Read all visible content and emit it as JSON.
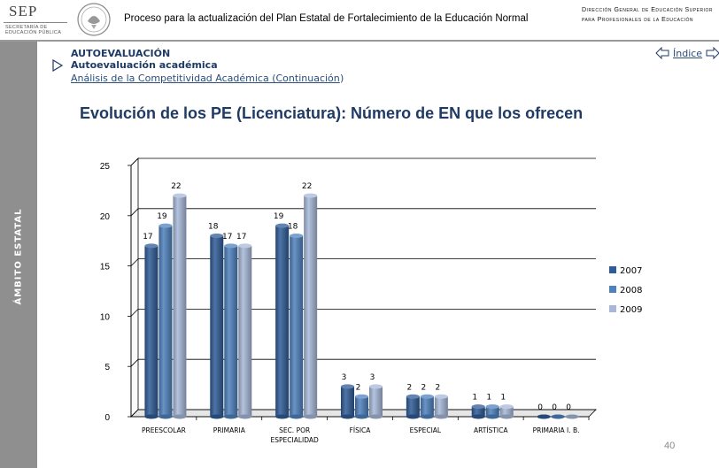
{
  "header": {
    "logo_text": "SEP",
    "logo_subtext": "SECRETARÍA DE EDUCACIÓN PÚBLICA",
    "title": "Proceso para la actualización del Plan Estatal de Fortalecimiento de la Educación Normal",
    "direccion": "Dirección General de Educación Superior para Profesionales de la Educación"
  },
  "sidebar": {
    "label": "ÁMBITO ESTATAL"
  },
  "section": {
    "title": "AUTOEVALUACIÓN",
    "subtitle": "Autoevaluación académica",
    "breadcrumb_link": "Análisis de la Competitividad Académica (Continuación",
    "breadcrumb_tail": ")"
  },
  "nav": {
    "index_label": "Índice"
  },
  "colors": {
    "s2007": "#2f5b96",
    "s2008": "#4f81bd",
    "s2009": "#a7b8d8",
    "title": "#1f3a64"
  },
  "chart_data": {
    "type": "bar",
    "title": "Evolución de los PE (Licenciatura): Número de EN que los ofrecen",
    "categories": [
      "PREESCOLAR",
      "PRIMARIA",
      "SEC. POR ESPECIALIDAD",
      "FÍSICA",
      "ESPECIAL",
      "ARTÍSTICA",
      "PRIMARIA I. B."
    ],
    "category_lines": [
      [
        "PREESCOLAR"
      ],
      [
        "PRIMARIA"
      ],
      [
        "SEC. POR",
        "ESPECIALIDAD"
      ],
      [
        "FÍSICA"
      ],
      [
        "ESPECIAL"
      ],
      [
        "ARTÍSTICA"
      ],
      [
        "PRIMARIA I. B."
      ]
    ],
    "series": [
      {
        "name": "2007",
        "values": [
          17,
          18,
          19,
          3,
          2,
          1,
          0
        ]
      },
      {
        "name": "2008",
        "values": [
          19,
          17,
          18,
          2,
          2,
          1,
          0
        ]
      },
      {
        "name": "2009",
        "values": [
          22,
          17,
          22,
          3,
          2,
          1,
          0
        ]
      }
    ],
    "ylim": [
      0,
      25
    ],
    "yticks": [
      0,
      5,
      10,
      15,
      20,
      25
    ],
    "grid": true,
    "legend": "right"
  },
  "footer": {
    "page_number": "40"
  }
}
